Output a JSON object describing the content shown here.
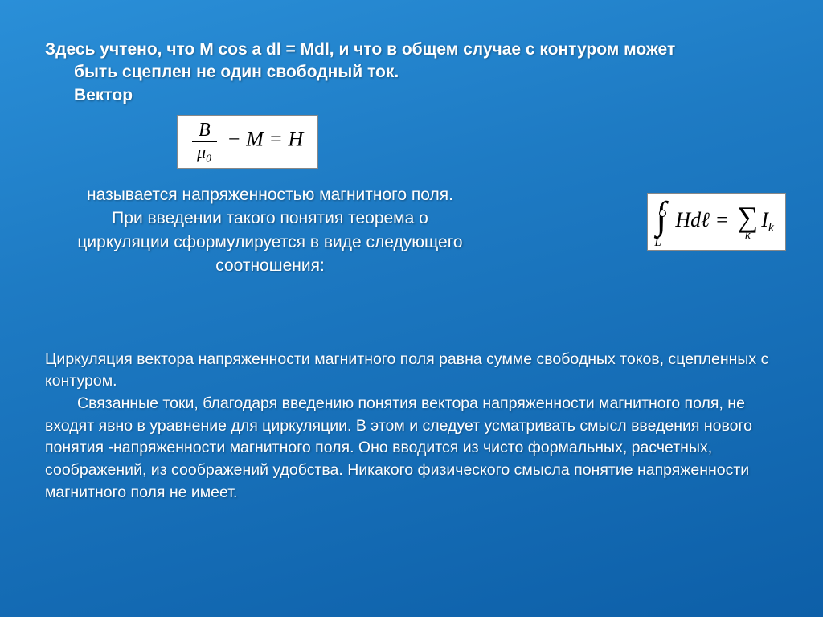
{
  "colors": {
    "bg_gradient_start": "#2a8fd8",
    "bg_gradient_mid": "#1e7bc4",
    "bg_gradient_end": "#0d5fa8",
    "text": "#ffffff",
    "formula_bg": "#ffffff",
    "formula_text": "#000000"
  },
  "top": {
    "line1": "Здесь учтено, что М cos a dl = Mdl, и что в общем случае с контуром может",
    "line2": "быть сцеплен не один свободный ток.",
    "line3": "Вектор"
  },
  "formula1": {
    "numerator": "B",
    "denominator": "μ₀",
    "rest": " − M = H"
  },
  "mid": {
    "l1": "называется напряженностью магнитного поля.",
    "l2": "При введении такого понятия теорема о",
    "l3": "циркуляции сформулируется в виде следующего",
    "l4": "соотношения:"
  },
  "formula2": {
    "left_integrand": "Hdℓ",
    "integral_sub": "L",
    "eq": " = ",
    "sum_sub": "k",
    "rhs_base": "I",
    "rhs_sub": "k"
  },
  "bottom": {
    "p1": "Циркуляция вектора напряженности магнитного поля равна сумме свободных токов, сцепленных с контуром.",
    "p2": "Связанные токи, благодаря введению понятия вектора напряженности магнитного поля, не входят явно в уравнение для циркуляции. В этом и следует усматривать смысл введения нового понятия -напряженности магнитного поля. Оно вводится из чисто формальных, расчетных, соображений, из соображений удобства. Никакого физического смысла понятие напряженности магнитного поля не имеет."
  }
}
